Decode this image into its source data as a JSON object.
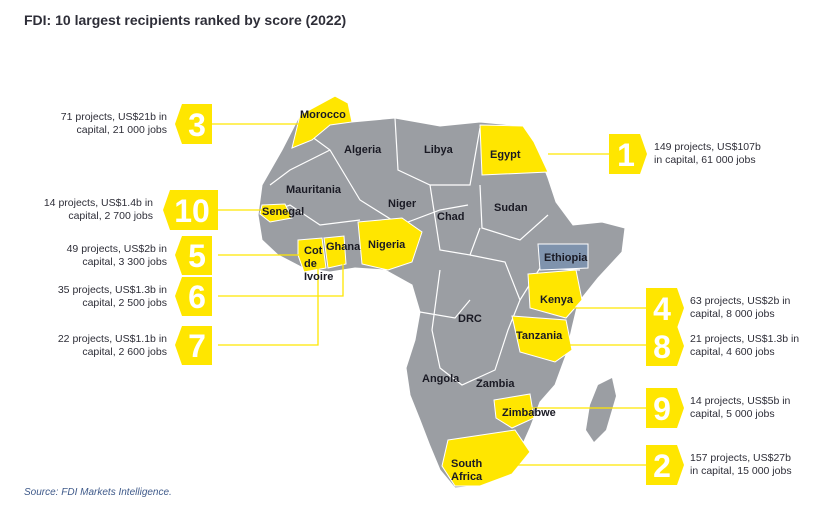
{
  "title": "FDI: 10 largest recipients ranked by score (2022)",
  "source": "Source: FDI Markets Intelligence.",
  "colors": {
    "highlight": "#ffe600",
    "land": "#9b9ea3",
    "border": "#ffffff",
    "ethiopia": "#7f93ad"
  },
  "countries": {
    "morocco": "Morocco",
    "algeria": "Algeria",
    "libya": "Libya",
    "egypt": "Egypt",
    "mauritania": "Mauritania",
    "niger": "Niger",
    "sudan": "Sudan",
    "senegal": "Senegal",
    "chad": "Chad",
    "nigeria": "Nigeria",
    "ghana": "Ghana",
    "cote1": "Cot",
    "cote2": "de",
    "cote3": "Ivoire",
    "ethiopia": "Ethiopia",
    "kenya": "Kenya",
    "drc": "DRC",
    "tanzania": "Tanzania",
    "angola": "Angola",
    "zambia": "Zambia",
    "zimbabwe": "Zimbabwe",
    "sa1": "South",
    "sa2": "Africa"
  },
  "rankings": [
    {
      "rank": "3",
      "country": "Morocco",
      "line1": "71 projects, US$21b in",
      "line2": "capital, 21 000 jobs"
    },
    {
      "rank": "10",
      "country": "Senegal",
      "line1": "14 projects, US$1.4b in",
      "line2": "capital, 2 700 jobs"
    },
    {
      "rank": "5",
      "country": "Cot de Ivoire",
      "line1": "49 projects, US$2b in",
      "line2": "capital, 3 300 jobs"
    },
    {
      "rank": "6",
      "country": "Ghana",
      "line1": "35 projects, US$1.3b in",
      "line2": "capital, 2 500 jobs"
    },
    {
      "rank": "7",
      "country": "Nigeria",
      "line1": "22 projects, US$1.1b in",
      "line2": "capital, 2 600 jobs"
    },
    {
      "rank": "1",
      "country": "Egypt",
      "line1": "149 projects, US$107b",
      "line2": "in capital, 61 000 jobs"
    },
    {
      "rank": "4",
      "country": "Kenya",
      "line1": "63 projects, US$2b in",
      "line2": "capital, 8 000 jobs"
    },
    {
      "rank": "8",
      "country": "Tanzania",
      "line1": "21 projects, US$1.3b in",
      "line2": "capital, 4 600 jobs"
    },
    {
      "rank": "9",
      "country": "Zimbabwe",
      "line1": "14 projects, US$5b in",
      "line2": "capital,  5 000 jobs"
    },
    {
      "rank": "2",
      "country": "South Africa",
      "line1": "157 projects, US$27b",
      "line2": "in capital, 15 000 jobs"
    }
  ]
}
